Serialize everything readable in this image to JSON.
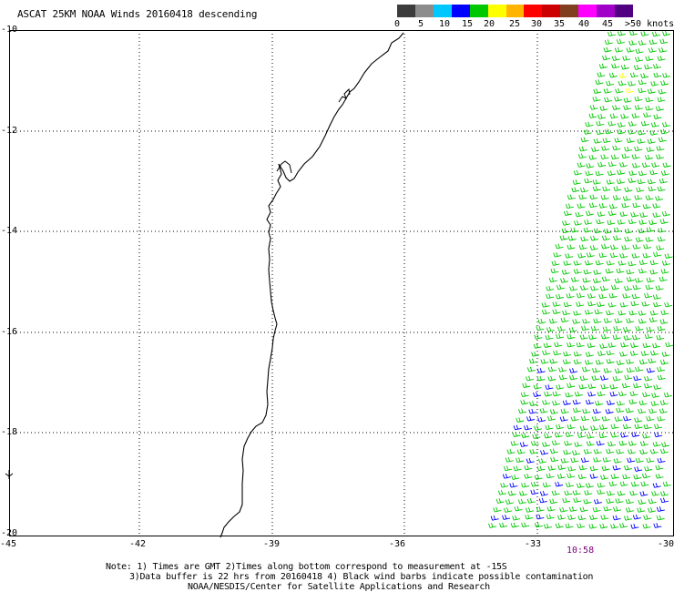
{
  "title": "ASCAT 25KM NOAA Winds 20160418 descending",
  "legend": {
    "labels": [
      "0",
      "5",
      "10",
      "15",
      "20",
      "25",
      "30",
      "35",
      "40",
      "45",
      ">50 knots"
    ],
    "colors": [
      "#3c3c3c",
      "#8c8c8c",
      "#00c8ff",
      "#0000ff",
      "#00c800",
      "#ffff00",
      "#ffb400",
      "#ff0000",
      "#cc0000",
      "#804020",
      "#ff00ff",
      "#a000c8",
      "#500080"
    ]
  },
  "axes": {
    "lon_ticks": [
      "-45",
      "-42",
      "-39",
      "-36",
      "-33",
      "-30"
    ],
    "lat_ticks": [
      "-10",
      "-12",
      "-14",
      "-16",
      "-18",
      "-20"
    ],
    "lon_range": [
      -45,
      -30
    ],
    "lat_range": [
      -10,
      -20
    ]
  },
  "pass_time": "10:58",
  "notes": [
    "Note: 1) Times are GMT 2)Times along bottom correspond to measurement at -15S",
    "3)Data buffer is 22 hrs from 20160418 4) Black wind barbs indicate possible contamination",
    "NOAA/NESDIS/Center for Satellite Applications and Research"
  ],
  "colors": {
    "barb_main": "#00c800",
    "barb_slow": "#0000ff",
    "barb_fast": "#ffff00",
    "coast": "#000000",
    "grid": "#000000"
  }
}
